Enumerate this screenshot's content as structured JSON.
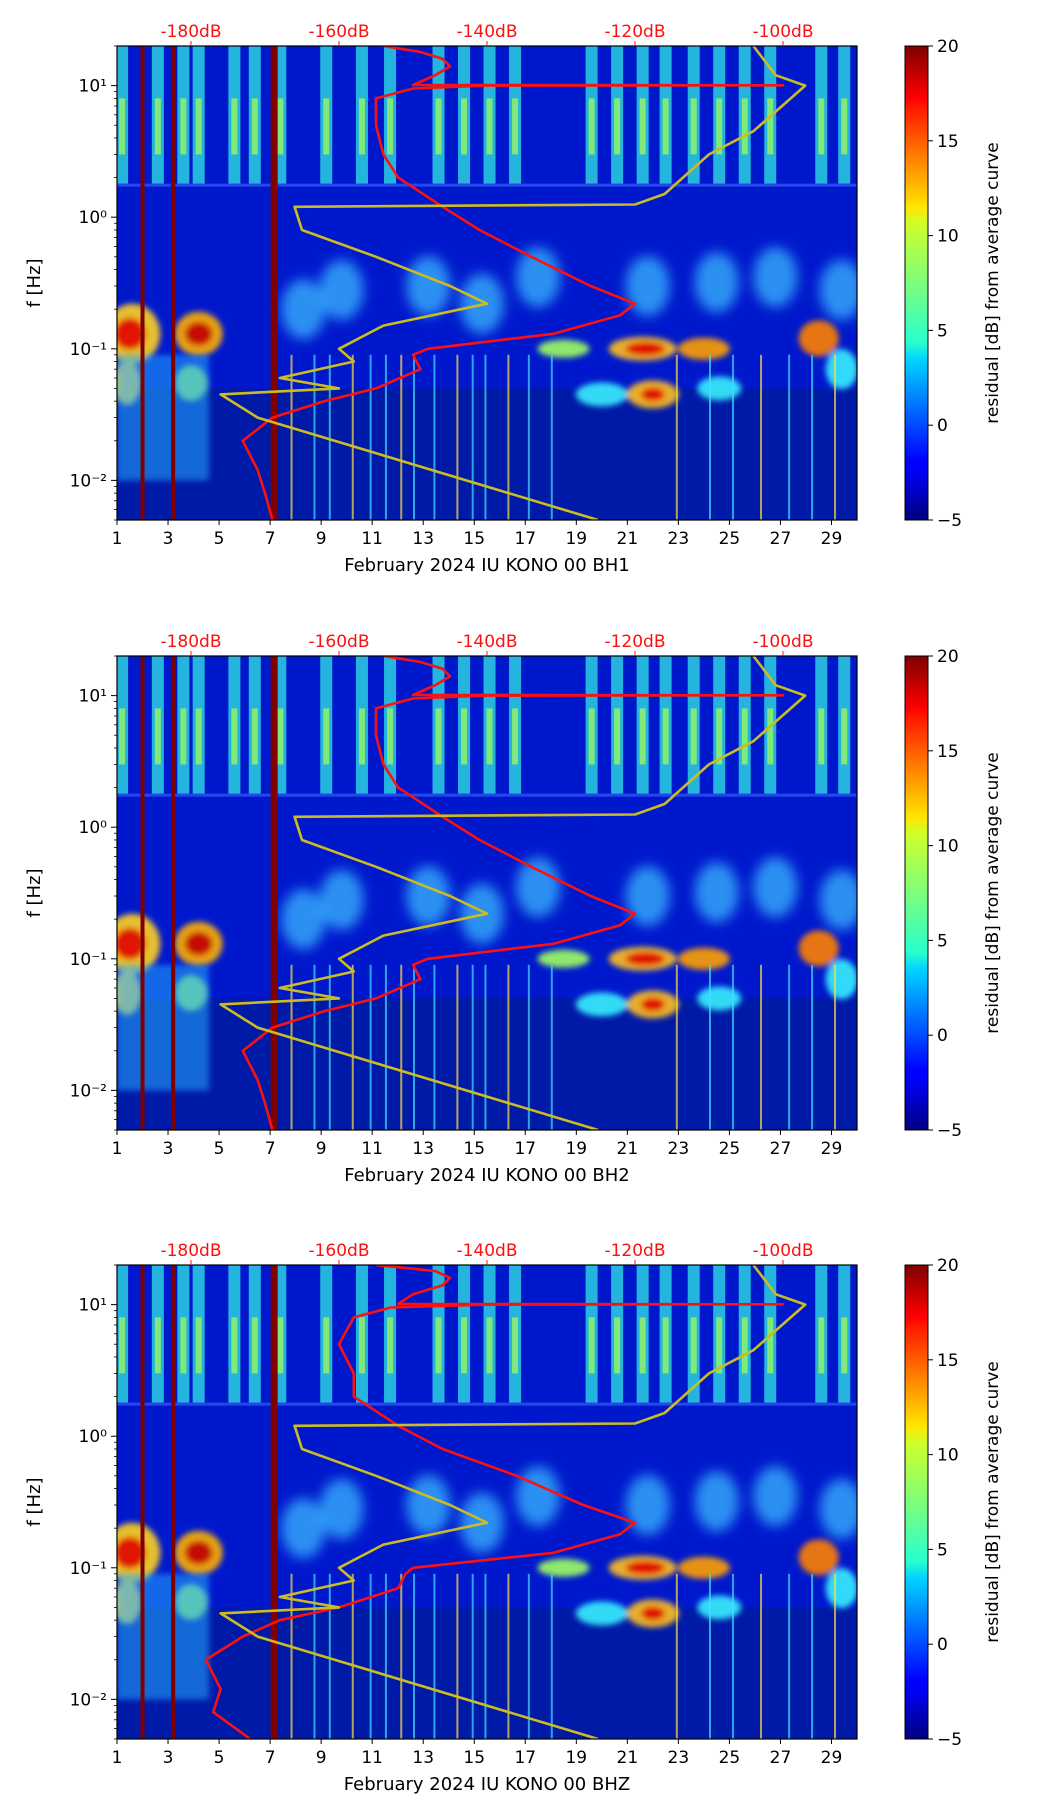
{
  "chart_data": [
    {
      "type": "heatmap",
      "panel": "BH1",
      "xlabel": "February 2024 IU KONO 00 BH1",
      "ylabel": "f [Hz]",
      "x_ticks": [
        "1",
        "3",
        "5",
        "7",
        "9",
        "11",
        "13",
        "15",
        "17",
        "19",
        "21",
        "23",
        "25",
        "27",
        "29"
      ],
      "xlim": [
        1,
        30
      ],
      "y_ticks": [
        "10⁻²",
        "10⁻¹",
        "10⁰",
        "10¹"
      ],
      "ylim_hz": [
        0.005,
        20
      ],
      "top_axis_ticks": [
        "-180dB",
        "-160dB",
        "-140dB",
        "-120dB",
        "-100dB"
      ],
      "top_axis_range_db": [
        -190,
        -90
      ],
      "colorbar": {
        "label": "residual [dB] from average curve",
        "ticks": [
          "20",
          "15",
          "10",
          "5",
          "0",
          "−5"
        ],
        "range": [
          -5,
          20
        ]
      },
      "gap_day_columns": [
        2.0,
        3.2,
        7.1
      ],
      "series": [
        {
          "name": "median PSD (red, top axis dB)",
          "color": "#ff1010",
          "points": [
            [
              0.005,
              -169
            ],
            [
              0.008,
              -170
            ],
            [
              0.012,
              -171
            ],
            [
              0.02,
              -173
            ],
            [
              0.03,
              -169
            ],
            [
              0.04,
              -162
            ],
            [
              0.05,
              -155
            ],
            [
              0.07,
              -149
            ],
            [
              0.09,
              -150
            ],
            [
              0.1,
              -148
            ],
            [
              0.13,
              -131
            ],
            [
              0.18,
              -122
            ],
            [
              0.22,
              -120
            ],
            [
              0.3,
              -126
            ],
            [
              0.5,
              -134
            ],
            [
              0.8,
              -141
            ],
            [
              1.2,
              -146
            ],
            [
              2,
              -152
            ],
            [
              3,
              -154
            ],
            [
              5,
              -155
            ],
            [
              8,
              -155
            ],
            [
              9.5,
              -150
            ],
            [
              10,
              -140
            ],
            [
              10.05,
              -100
            ],
            [
              10.1,
              -150
            ],
            [
              12,
              -147
            ],
            [
              14,
              -145
            ],
            [
              16,
              -146
            ],
            [
              18,
              -149
            ],
            [
              20,
              -154
            ]
          ]
        },
        {
          "name": "noise model (yellow, top axis dB)",
          "color": "#ccbb22",
          "points": [
            [
              0.005,
              -125
            ],
            [
              0.03,
              -171
            ],
            [
              0.045,
              -176
            ],
            [
              0.05,
              -160
            ],
            [
              0.06,
              -168
            ],
            [
              0.08,
              -158
            ],
            [
              0.1,
              -160
            ],
            [
              0.15,
              -154
            ],
            [
              0.22,
              -140
            ],
            [
              0.3,
              -145
            ],
            [
              0.5,
              -155
            ],
            [
              0.8,
              -165
            ],
            [
              1.2,
              -166
            ],
            [
              1.25,
              -120
            ],
            [
              1.5,
              -116
            ],
            [
              3,
              -110
            ],
            [
              4.5,
              -104
            ],
            [
              10,
              -97
            ],
            [
              12,
              -101
            ],
            [
              20,
              -104
            ]
          ]
        }
      ]
    },
    {
      "type": "heatmap",
      "panel": "BH2",
      "xlabel": "February 2024 IU KONO 00 BH2",
      "ylabel": "f [Hz]",
      "x_ticks": [
        "1",
        "3",
        "5",
        "7",
        "9",
        "11",
        "13",
        "15",
        "17",
        "19",
        "21",
        "23",
        "25",
        "27",
        "29"
      ],
      "xlim": [
        1,
        30
      ],
      "y_ticks": [
        "10⁻²",
        "10⁻¹",
        "10⁰",
        "10¹"
      ],
      "ylim_hz": [
        0.005,
        20
      ],
      "top_axis_ticks": [
        "-180dB",
        "-160dB",
        "-140dB",
        "-120dB",
        "-100dB"
      ],
      "top_axis_range_db": [
        -190,
        -90
      ],
      "colorbar": {
        "label": "residual [dB] from average curve",
        "ticks": [
          "20",
          "15",
          "10",
          "5",
          "0",
          "−5"
        ],
        "range": [
          -5,
          20
        ]
      },
      "gap_day_columns": [
        2.0,
        3.2,
        7.1
      ],
      "series": [
        {
          "name": "median PSD (red, top axis dB)",
          "color": "#ff1010",
          "points": [
            [
              0.005,
              -169
            ],
            [
              0.008,
              -170
            ],
            [
              0.012,
              -171
            ],
            [
              0.02,
              -173
            ],
            [
              0.03,
              -169
            ],
            [
              0.04,
              -162
            ],
            [
              0.05,
              -155
            ],
            [
              0.07,
              -149
            ],
            [
              0.09,
              -150
            ],
            [
              0.1,
              -148
            ],
            [
              0.13,
              -131
            ],
            [
              0.18,
              -122
            ],
            [
              0.22,
              -120
            ],
            [
              0.3,
              -126
            ],
            [
              0.5,
              -134
            ],
            [
              0.8,
              -141
            ],
            [
              1.2,
              -146
            ],
            [
              2,
              -152
            ],
            [
              3,
              -154
            ],
            [
              5,
              -155
            ],
            [
              8,
              -155
            ],
            [
              9.5,
              -150
            ],
            [
              10,
              -140
            ],
            [
              10.05,
              -100
            ],
            [
              10.1,
              -150
            ],
            [
              12,
              -147
            ],
            [
              14,
              -145
            ],
            [
              16,
              -146
            ],
            [
              18,
              -149
            ],
            [
              20,
              -154
            ]
          ]
        },
        {
          "name": "noise model (yellow, top axis dB)",
          "color": "#ccbb22",
          "points": [
            [
              0.005,
              -125
            ],
            [
              0.03,
              -171
            ],
            [
              0.045,
              -176
            ],
            [
              0.05,
              -160
            ],
            [
              0.06,
              -168
            ],
            [
              0.08,
              -158
            ],
            [
              0.1,
              -160
            ],
            [
              0.15,
              -154
            ],
            [
              0.22,
              -140
            ],
            [
              0.3,
              -145
            ],
            [
              0.5,
              -155
            ],
            [
              0.8,
              -165
            ],
            [
              1.2,
              -166
            ],
            [
              1.25,
              -120
            ],
            [
              1.5,
              -116
            ],
            [
              3,
              -110
            ],
            [
              4.5,
              -104
            ],
            [
              10,
              -97
            ],
            [
              12,
              -101
            ],
            [
              20,
              -104
            ]
          ]
        }
      ]
    },
    {
      "type": "heatmap",
      "panel": "BHZ",
      "xlabel": "February 2024 IU KONO 00 BHZ",
      "ylabel": "f [Hz]",
      "x_ticks": [
        "1",
        "3",
        "5",
        "7",
        "9",
        "11",
        "13",
        "15",
        "17",
        "19",
        "21",
        "23",
        "25",
        "27",
        "29"
      ],
      "xlim": [
        1,
        30
      ],
      "y_ticks": [
        "10⁻²",
        "10⁻¹",
        "10⁰",
        "10¹"
      ],
      "ylim_hz": [
        0.005,
        20
      ],
      "top_axis_ticks": [
        "-180dB",
        "-160dB",
        "-140dB",
        "-120dB",
        "-100dB"
      ],
      "top_axis_range_db": [
        -190,
        -90
      ],
      "colorbar": {
        "label": "residual [dB] from average curve",
        "ticks": [
          "20",
          "15",
          "10",
          "5",
          "0",
          "−5"
        ],
        "range": [
          -5,
          20
        ]
      },
      "gap_day_columns": [
        2.0,
        3.2,
        7.1
      ],
      "series": [
        {
          "name": "median PSD (red, top axis dB)",
          "color": "#ff1010",
          "points": [
            [
              0.005,
              -172
            ],
            [
              0.008,
              -177
            ],
            [
              0.012,
              -176
            ],
            [
              0.02,
              -178
            ],
            [
              0.03,
              -173
            ],
            [
              0.04,
              -168
            ],
            [
              0.05,
              -160
            ],
            [
              0.07,
              -152
            ],
            [
              0.09,
              -151
            ],
            [
              0.1,
              -150
            ],
            [
              0.13,
              -131
            ],
            [
              0.18,
              -122
            ],
            [
              0.22,
              -120
            ],
            [
              0.3,
              -127
            ],
            [
              0.5,
              -136
            ],
            [
              0.8,
              -146
            ],
            [
              1.2,
              -152
            ],
            [
              2,
              -158
            ],
            [
              3,
              -158
            ],
            [
              5,
              -160
            ],
            [
              8,
              -158
            ],
            [
              9.5,
              -153
            ],
            [
              10,
              -140
            ],
            [
              10.05,
              -100
            ],
            [
              10.1,
              -152
            ],
            [
              12,
              -150
            ],
            [
              14,
              -146
            ],
            [
              16,
              -145
            ],
            [
              18,
              -147
            ],
            [
              20,
              -155
            ]
          ]
        },
        {
          "name": "noise model (yellow, top axis dB)",
          "color": "#ccbb22",
          "points": [
            [
              0.005,
              -125
            ],
            [
              0.03,
              -171
            ],
            [
              0.045,
              -176
            ],
            [
              0.05,
              -160
            ],
            [
              0.06,
              -168
            ],
            [
              0.08,
              -158
            ],
            [
              0.1,
              -160
            ],
            [
              0.15,
              -154
            ],
            [
              0.22,
              -140
            ],
            [
              0.3,
              -145
            ],
            [
              0.5,
              -155
            ],
            [
              0.8,
              -165
            ],
            [
              1.2,
              -166
            ],
            [
              1.25,
              -120
            ],
            [
              1.5,
              -116
            ],
            [
              3,
              -110
            ],
            [
              4.5,
              -104
            ],
            [
              10,
              -97
            ],
            [
              12,
              -101
            ],
            [
              20,
              -104
            ]
          ]
        }
      ]
    }
  ]
}
